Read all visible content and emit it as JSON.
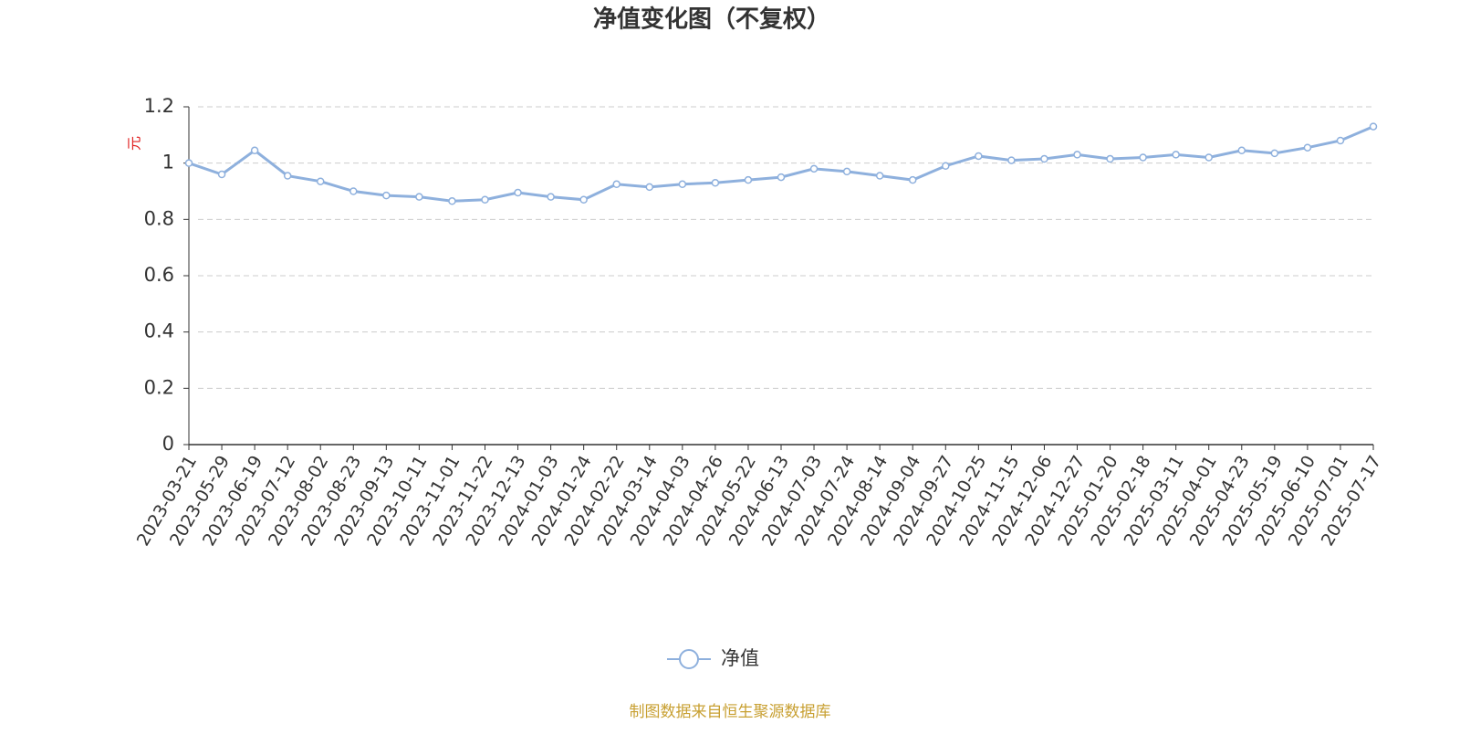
{
  "chart_data": {
    "type": "line",
    "title": "净值变化图（不复权）",
    "y_label": "元",
    "source": "制图数据来自恒生聚源数据库",
    "categories": [
      "2023-03-21",
      "2023-05-29",
      "2023-06-19",
      "2023-07-12",
      "2023-08-02",
      "2023-08-23",
      "2023-09-13",
      "2023-10-11",
      "2023-11-01",
      "2023-11-22",
      "2023-12-13",
      "2024-01-03",
      "2024-01-24",
      "2024-02-22",
      "2024-03-14",
      "2024-04-03",
      "2024-04-26",
      "2024-05-22",
      "2024-06-13",
      "2024-07-03",
      "2024-07-24",
      "2024-08-14",
      "2024-09-04",
      "2024-09-27",
      "2024-10-25",
      "2024-11-15",
      "2024-12-06",
      "2024-12-27",
      "2025-01-20",
      "2025-02-18",
      "2025-03-11",
      "2025-04-01",
      "2025-04-23",
      "2025-05-19",
      "2025-06-10",
      "2025-07-01",
      "2025-07-17"
    ],
    "series": [
      {
        "name": "净值",
        "color": "#8eb0dd",
        "values": [
          1.0,
          0.96,
          1.045,
          0.955,
          0.935,
          0.9,
          0.885,
          0.88,
          0.865,
          0.87,
          0.895,
          0.88,
          0.87,
          0.925,
          0.915,
          0.925,
          0.93,
          0.94,
          0.95,
          0.98,
          0.97,
          0.955,
          0.94,
          0.99,
          1.025,
          1.01,
          1.015,
          1.03,
          1.015,
          1.02,
          1.03,
          1.02,
          1.045,
          1.035,
          1.055,
          1.08,
          1.13
        ]
      }
    ],
    "ylim": [
      0,
      1.2
    ],
    "yticks": [
      0,
      0.2,
      0.4,
      0.6,
      0.8,
      1,
      1.2
    ],
    "grid": true
  }
}
